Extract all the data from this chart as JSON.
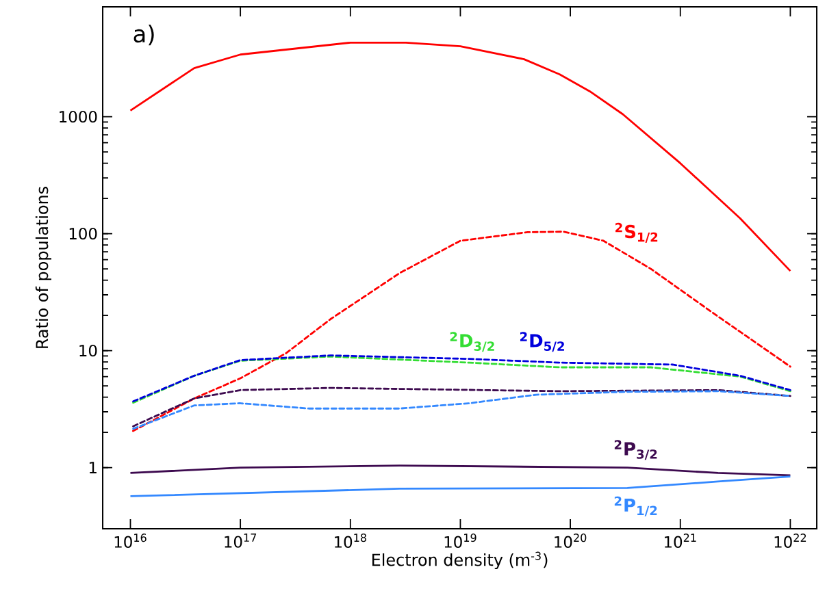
{
  "chart_data": {
    "type": "line",
    "xlabel": "Electron density  (m$^{-3}$)",
    "ylabel": "Ratio of populations",
    "log": "xy",
    "xlim": [
      5600000000000000.0,
      1.74e+22
    ],
    "ylim": [
      0.3,
      8700
    ],
    "xticks": [
      {
        "value": 1e+16,
        "label": "10$^{16}$"
      },
      {
        "value": 1e+17,
        "label": "10$^{17}$"
      },
      {
        "value": 1e+18,
        "label": "10$^{18}$"
      },
      {
        "value": 1e+19,
        "label": "10$^{19}$"
      },
      {
        "value": 1e+20,
        "label": "10$^{20}$"
      },
      {
        "value": 1e+21,
        "label": "10$^{21}$"
      },
      {
        "value": 1e+22,
        "label": "10$^{22}$"
      }
    ],
    "yticks": [
      1,
      10,
      100,
      1000
    ],
    "grid": false,
    "legend": false,
    "marker": "none",
    "series": [
      {
        "name": "$^{2}$S$_{1/2}$",
        "color": "#ff0000",
        "line_style": "dashed",
        "x": [
          1e+16,
          3.8e+16,
          1e+17,
          2.6e+17,
          6.6e+17,
          2.8e+18,
          1e+19,
          4.1e+19,
          8.7e+19,
          2e+20,
          5.4e+20,
          2.2e+21,
          1e+22
        ],
        "values": [
          2.0,
          3.9,
          5.8,
          9.5,
          18.6,
          46,
          87,
          103,
          104,
          87,
          50,
          19.6,
          7.3
        ]
      },
      {
        "name": "$^{2}$D$_{3/2}$",
        "color": "#33dd33",
        "line_style": "dashed",
        "x": [
          1e+16,
          3.8e+16,
          1e+17,
          6.6e+17,
          1.2e+19,
          8e+19,
          5.4e+20,
          3.5e+21,
          1e+22
        ],
        "values": [
          3.5,
          6.1,
          8.2,
          8.9,
          7.9,
          7.2,
          7.2,
          6.0,
          4.5
        ]
      },
      {
        "name": "$^{2}$D$_{5/2}$",
        "color": "#0000dd",
        "line_style": "dashed",
        "x": [
          1e+16,
          3.8e+16,
          1e+17,
          6.6e+17,
          1.2e+19,
          8e+19,
          8.5e+20,
          3.5e+21,
          1e+22
        ],
        "values": [
          3.6,
          6.1,
          8.3,
          9.1,
          8.5,
          7.9,
          7.6,
          6.1,
          4.6
        ]
      },
      {
        "name": "$^{2}$P$_{3/2}$",
        "color": "#3d0a4f",
        "line_style": "solid",
        "x": [
          1e+16,
          1e+17,
          2.8e+18,
          3.3e+20,
          2.2e+21,
          1e+22
        ],
        "values": [
          0.9,
          1.0,
          1.04,
          1.0,
          0.9,
          0.86
        ]
      },
      {
        "name": "$^{2}$P$_{1/2}$",
        "color": "#3388ff",
        "line_style": "solid",
        "x": [
          1e+16,
          2.8e+18,
          3.3e+20,
          2.2e+21,
          1e+22
        ],
        "values": [
          0.57,
          0.66,
          0.67,
          0.76,
          0.84
        ]
      },
      {
        "color": "#ff0000",
        "line_style": "solid",
        "x": [
          1e+16,
          3.8e+16,
          1e+17,
          1e+18,
          3.2e+18,
          1e+19,
          3.8e+19,
          8e+19,
          1.5e+20,
          3e+20,
          1e+21,
          3.5e+21,
          1e+22
        ],
        "values": [
          1130,
          2600,
          3400,
          4300,
          4300,
          4000,
          3100,
          2300,
          1650,
          1050,
          400,
          135,
          48
        ]
      },
      {
        "color": "#3d0a4f",
        "line_style": "dashed",
        "x": [
          1e+16,
          3.8e+16,
          1e+17,
          6.6e+17,
          8e+19,
          2.2e+21,
          1e+22
        ],
        "values": [
          2.2,
          3.9,
          4.6,
          4.8,
          4.5,
          4.6,
          4.1
        ]
      },
      {
        "color": "#3388ff",
        "line_style": "dashed",
        "x": [
          1e+16,
          3.8e+16,
          1e+17,
          4.2e+17,
          2.8e+18,
          1.2e+19,
          4.9e+19,
          3.3e+20,
          2.2e+21,
          1e+22
        ],
        "values": [
          2.1,
          3.4,
          3.55,
          3.2,
          3.2,
          3.55,
          4.2,
          4.45,
          4.5,
          4.1
        ]
      }
    ],
    "annotations": [
      "a)"
    ]
  }
}
